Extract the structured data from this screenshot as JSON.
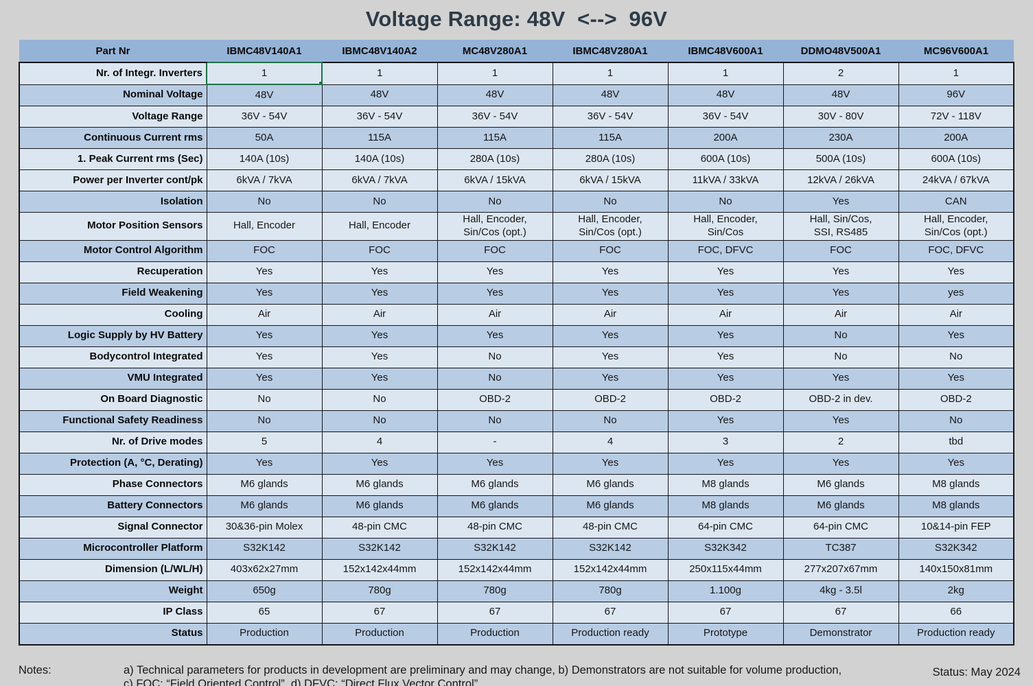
{
  "title": "Voltage Range: 48V  <-->  96V",
  "columns": [
    "Part Nr",
    "IBMC48V140A1",
    "IBMC48V140A2",
    "MC48V280A1",
    "IBMC48V280A1",
    "IBMC48V600A1",
    "DDMO48V500A1",
    "MC96V600A1"
  ],
  "rows": [
    {
      "label": "Nr. of Integr. Inverters",
      "values": [
        "1",
        "1",
        "1",
        "1",
        "1",
        "2",
        "1"
      ]
    },
    {
      "label": "Nominal Voltage",
      "values": [
        "48V",
        "48V",
        "48V",
        "48V",
        "48V",
        "48V",
        "96V"
      ]
    },
    {
      "label": "Voltage Range",
      "values": [
        "36V - 54V",
        "36V - 54V",
        "36V - 54V",
        "36V - 54V",
        "36V - 54V",
        "30V - 80V",
        "72V - 118V"
      ]
    },
    {
      "label": "Continuous Current rms",
      "values": [
        "50A",
        "115A",
        "115A",
        "115A",
        "200A",
        "230A",
        "200A"
      ]
    },
    {
      "label": "1. Peak Current rms (Sec)",
      "values": [
        "140A (10s)",
        "140A (10s)",
        "280A (10s)",
        "280A (10s)",
        "600A (10s)",
        "500A (10s)",
        "600A (10s)"
      ]
    },
    {
      "label": "Power per Inverter cont/pk",
      "values": [
        "6kVA / 7kVA",
        "6kVA / 7kVA",
        "6kVA / 15kVA",
        "6kVA / 15kVA",
        "11kVA / 33kVA",
        "12kVA / 26kVA",
        "24kVA / 67kVA"
      ]
    },
    {
      "label": "Isolation",
      "values": [
        "No",
        "No",
        "No",
        "No",
        "No",
        "Yes",
        "CAN"
      ]
    },
    {
      "label": "Motor Position Sensors",
      "values": [
        "Hall, Encoder",
        "Hall, Encoder",
        "Hall, Encoder,\nSin/Cos (opt.)",
        "Hall, Encoder,\nSin/Cos (opt.)",
        "Hall, Encoder,\nSin/Cos",
        "Hall, Sin/Cos,\nSSI, RS485",
        "Hall, Encoder,\nSin/Cos (opt.)"
      ]
    },
    {
      "label": "Motor Control Algorithm",
      "values": [
        "FOC",
        "FOC",
        "FOC",
        "FOC",
        "FOC, DFVC",
        "FOC",
        "FOC, DFVC"
      ]
    },
    {
      "label": "Recuperation",
      "values": [
        "Yes",
        "Yes",
        "Yes",
        "Yes",
        "Yes",
        "Yes",
        "Yes"
      ]
    },
    {
      "label": "Field Weakening",
      "values": [
        "Yes",
        "Yes",
        "Yes",
        "Yes",
        "Yes",
        "Yes",
        "yes"
      ]
    },
    {
      "label": "Cooling",
      "values": [
        "Air",
        "Air",
        "Air",
        "Air",
        "Air",
        "Air",
        "Air"
      ]
    },
    {
      "label": "Logic Supply by HV Battery",
      "values": [
        "Yes",
        "Yes",
        "Yes",
        "Yes",
        "Yes",
        "No",
        "Yes"
      ]
    },
    {
      "label": "Bodycontrol Integrated",
      "values": [
        "Yes",
        "Yes",
        "No",
        "Yes",
        "Yes",
        "No",
        "No"
      ]
    },
    {
      "label": "VMU Integrated",
      "values": [
        "Yes",
        "Yes",
        "No",
        "Yes",
        "Yes",
        "Yes",
        "Yes"
      ]
    },
    {
      "label": "On Board Diagnostic",
      "values": [
        "No",
        "No",
        "OBD-2",
        "OBD-2",
        "OBD-2",
        "OBD-2 in dev.",
        "OBD-2"
      ]
    },
    {
      "label": "Functional Safety Readiness",
      "values": [
        "No",
        "No",
        "No",
        "No",
        "Yes",
        "Yes",
        "No"
      ]
    },
    {
      "label": "Nr. of Drive modes",
      "values": [
        "5",
        "4",
        "-",
        "4",
        "3",
        "2",
        "tbd"
      ]
    },
    {
      "label": "Protection (A, °C, Derating)",
      "values": [
        "Yes",
        "Yes",
        "Yes",
        "Yes",
        "Yes",
        "Yes",
        "Yes"
      ]
    },
    {
      "label": "Phase Connectors",
      "values": [
        "M6 glands",
        "M6 glands",
        "M6 glands",
        "M6 glands",
        "M8 glands",
        "M6 glands",
        "M8 glands"
      ]
    },
    {
      "label": "Battery Connectors",
      "values": [
        "M6 glands",
        "M6 glands",
        "M6 glands",
        "M6 glands",
        "M8 glands",
        "M6 glands",
        "M8 glands"
      ]
    },
    {
      "label": "Signal Connector",
      "values": [
        "30&36-pin Molex",
        "48-pin CMC",
        "48-pin CMC",
        "48-pin CMC",
        "64-pin CMC",
        "64-pin CMC",
        "10&14-pin FEP"
      ]
    },
    {
      "label": "Microcontroller Platform",
      "values": [
        "S32K142",
        "S32K142",
        "S32K142",
        "S32K142",
        "S32K342",
        "TC387",
        "S32K342"
      ]
    },
    {
      "label": "Dimension (L/WL/H)",
      "values": [
        "403x62x27mm",
        "152x142x44mm",
        "152x142x44mm",
        "152x142x44mm",
        "250x115x44mm",
        "277x207x67mm",
        "140x150x81mm"
      ]
    },
    {
      "label": "Weight",
      "values": [
        "650g",
        "780g",
        "780g",
        "780g",
        "1.100g",
        "4kg - 3.5l",
        "2kg"
      ]
    },
    {
      "label": "IP Class",
      "values": [
        "65",
        "67",
        "67",
        "67",
        "67",
        "67",
        "66"
      ]
    },
    {
      "label": "Status",
      "values": [
        "Production",
        "Production",
        "Production",
        "Production ready",
        "Prototype",
        "Demonstrator",
        "Production ready"
      ]
    }
  ],
  "selection": {
    "row": 0,
    "col": 0
  },
  "notes": {
    "label": "Notes:",
    "line1": "a) Technical parameters for products in development are preliminary and may change, b) Demonstrators are not suitable for volume production,",
    "line2": "c) FOC: “Field Oriented Control”, d) DFVC: “Direct Flux Vector Control”"
  },
  "footer": {
    "status": "Status: May 2024"
  },
  "colors": {
    "page-bg": "#d2d2d2",
    "title-color": "#2e3b47",
    "header-bg": "#95b3d7",
    "row-light": "#dce6f1",
    "row-dark": "#b8cce4",
    "grid-color": "#15151a",
    "selection-green": "#1e7145"
  }
}
